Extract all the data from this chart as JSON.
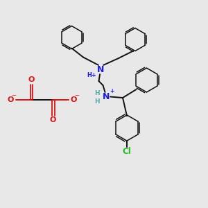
{
  "bg_color": "#e8e8e8",
  "n_color": "#1a1aee",
  "h_color": "#55aaaa",
  "o_color": "#dd1111",
  "cl_color": "#22bb22",
  "bond_color": "#111111",
  "fig_w": 3.0,
  "fig_h": 3.0,
  "dpi": 100,
  "xlim": [
    0,
    10
  ],
  "ylim": [
    0,
    10
  ]
}
